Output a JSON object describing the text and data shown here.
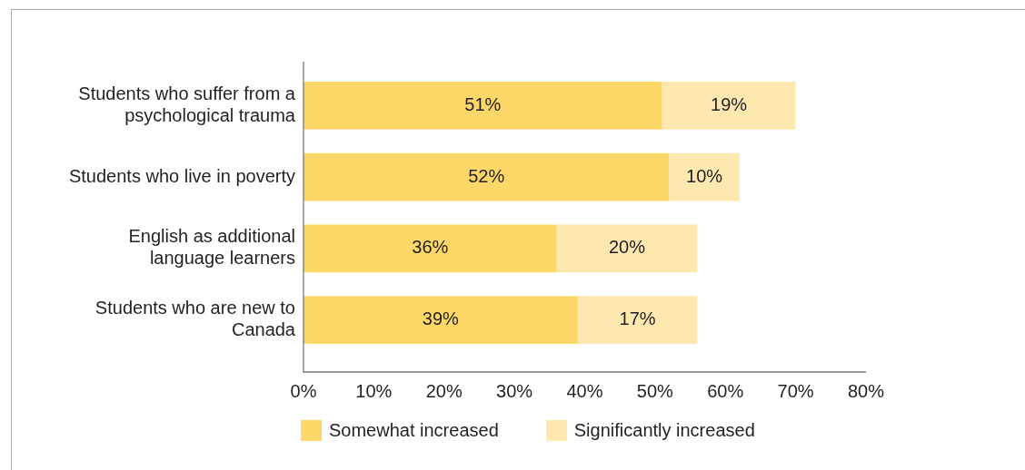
{
  "chart_data": {
    "type": "bar",
    "orientation": "horizontal",
    "stacked": true,
    "categories": [
      "Students who suffer from a psychological trauma",
      "Students who live in poverty",
      "English as additional language learners",
      "Students who are new to Canada"
    ],
    "series": [
      {
        "name": "Somewhat increased",
        "color": "#fdd768",
        "values": [
          51,
          52,
          36,
          39
        ],
        "value_labels": [
          "51%",
          "52%",
          "36%",
          "39%"
        ]
      },
      {
        "name": "Significantly increased",
        "color": "#fde8b0",
        "values": [
          19,
          10,
          20,
          17
        ],
        "value_labels": [
          "19%",
          "10%",
          "20%",
          "17%"
        ]
      }
    ],
    "xlim": [
      0,
      80
    ],
    "xticks": [
      {
        "value": 0,
        "label": "0%"
      },
      {
        "value": 10,
        "label": "10%"
      },
      {
        "value": 20,
        "label": "20%"
      },
      {
        "value": 30,
        "label": "30%"
      },
      {
        "value": 40,
        "label": "40%"
      },
      {
        "value": 50,
        "label": "50%"
      },
      {
        "value": 60,
        "label": "60%"
      },
      {
        "value": 70,
        "label": "70%"
      },
      {
        "value": 80,
        "label": "80%"
      }
    ],
    "legend": "bottom"
  }
}
